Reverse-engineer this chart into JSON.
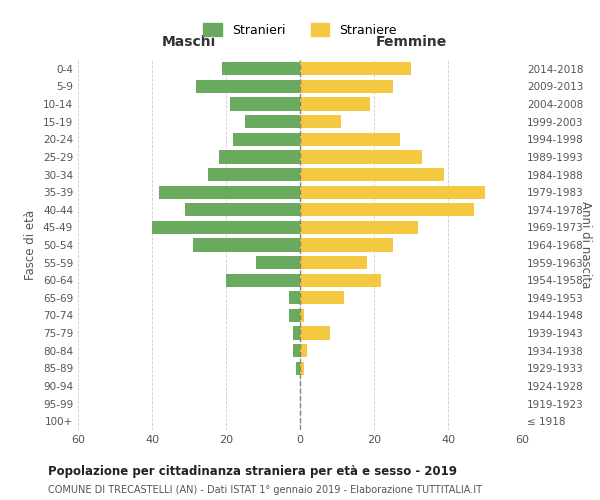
{
  "age_groups": [
    "100+",
    "95-99",
    "90-94",
    "85-89",
    "80-84",
    "75-79",
    "70-74",
    "65-69",
    "60-64",
    "55-59",
    "50-54",
    "45-49",
    "40-44",
    "35-39",
    "30-34",
    "25-29",
    "20-24",
    "15-19",
    "10-14",
    "5-9",
    "0-4"
  ],
  "birth_years": [
    "≤ 1918",
    "1919-1923",
    "1924-1928",
    "1929-1933",
    "1934-1938",
    "1939-1943",
    "1944-1948",
    "1949-1953",
    "1954-1958",
    "1959-1963",
    "1964-1968",
    "1969-1973",
    "1974-1978",
    "1979-1983",
    "1984-1988",
    "1989-1993",
    "1994-1998",
    "1999-2003",
    "2004-2008",
    "2009-2013",
    "2014-2018"
  ],
  "maschi": [
    0,
    0,
    0,
    1,
    2,
    2,
    3,
    3,
    20,
    12,
    29,
    40,
    31,
    38,
    25,
    22,
    18,
    15,
    19,
    28,
    21
  ],
  "femmine": [
    0,
    0,
    0,
    1,
    2,
    8,
    1,
    12,
    22,
    18,
    25,
    32,
    47,
    50,
    39,
    33,
    27,
    11,
    19,
    25,
    30
  ],
  "maschi_color": "#6aaa5e",
  "femmine_color": "#f5c842",
  "title": "Popolazione per cittadinanza straniera per età e sesso - 2019",
  "subtitle": "COMUNE DI TRECASTELLI (AN) - Dati ISTAT 1° gennaio 2019 - Elaborazione TUTTITALIA.IT",
  "xlabel_left": "Maschi",
  "xlabel_right": "Femmine",
  "ylabel_left": "Fasce di età",
  "ylabel_right": "Anni di nascita",
  "legend_maschi": "Stranieri",
  "legend_femmine": "Straniere",
  "xlim": 60,
  "background_color": "#ffffff",
  "grid_color": "#cccccc"
}
